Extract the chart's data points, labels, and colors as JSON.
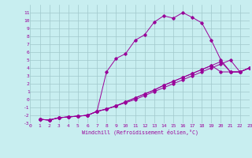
{
  "xlabel": "Windchill (Refroidissement éolien,°C)",
  "bg_color": "#c8eef0",
  "grid_color": "#a0c8cc",
  "line_color": "#990099",
  "xlim": [
    0,
    23
  ],
  "ylim": [
    -3,
    12
  ],
  "xticks": [
    0,
    1,
    2,
    3,
    4,
    5,
    6,
    7,
    8,
    9,
    10,
    11,
    12,
    13,
    14,
    15,
    16,
    17,
    18,
    19,
    20,
    21,
    22,
    23
  ],
  "yticks": [
    -3,
    -2,
    -1,
    0,
    1,
    2,
    3,
    4,
    5,
    6,
    7,
    8,
    9,
    10,
    11
  ],
  "curve1_x": [
    1,
    2,
    3,
    4,
    5,
    6,
    7,
    8,
    9,
    10,
    11,
    12,
    13,
    14,
    15,
    16,
    17,
    18,
    19,
    20,
    21,
    22,
    23
  ],
  "curve1_y": [
    -2.5,
    -2.6,
    -2.3,
    -2.2,
    -2.1,
    -2.0,
    -1.5,
    3.5,
    5.2,
    5.8,
    7.5,
    8.2,
    9.8,
    10.6,
    10.3,
    11.0,
    10.4,
    9.7,
    7.5,
    5.0,
    3.5,
    3.5,
    4.0
  ],
  "curve2_x": [
    1,
    2,
    3,
    4,
    5,
    6,
    7,
    8,
    9,
    10,
    11,
    12,
    13,
    14,
    15,
    16,
    17,
    18,
    19,
    20,
    21,
    22,
    23
  ],
  "curve2_y": [
    -2.5,
    -2.6,
    -2.3,
    -2.2,
    -2.1,
    -2.0,
    -1.5,
    -1.2,
    -0.8,
    -0.4,
    0.0,
    0.5,
    1.0,
    1.5,
    2.0,
    2.5,
    3.0,
    3.5,
    4.0,
    4.5,
    5.0,
    3.5,
    4.0
  ],
  "curve3_x": [
    1,
    2,
    3,
    4,
    5,
    6,
    7,
    8,
    9,
    10,
    11,
    12,
    13,
    14,
    15,
    16,
    17,
    18,
    19,
    20,
    21,
    22,
    23
  ],
  "curve3_y": [
    -2.5,
    -2.6,
    -2.3,
    -2.2,
    -2.1,
    -2.0,
    -1.5,
    -1.2,
    -0.8,
    -0.3,
    0.2,
    0.7,
    1.2,
    1.8,
    2.3,
    2.8,
    3.3,
    3.8,
    4.3,
    4.8,
    3.5,
    3.5,
    4.0
  ],
  "curve4_x": [
    1,
    2,
    3,
    4,
    5,
    6,
    7,
    8,
    9,
    10,
    11,
    12,
    13,
    14,
    15,
    16,
    17,
    18,
    19,
    20,
    21,
    22,
    23
  ],
  "curve4_y": [
    -2.5,
    -2.6,
    -2.3,
    -2.2,
    -2.1,
    -2.0,
    -1.5,
    -1.2,
    -0.8,
    -0.3,
    0.2,
    0.7,
    1.2,
    1.8,
    2.3,
    2.8,
    3.3,
    3.8,
    4.3,
    3.5,
    3.5,
    3.5,
    4.0
  ]
}
